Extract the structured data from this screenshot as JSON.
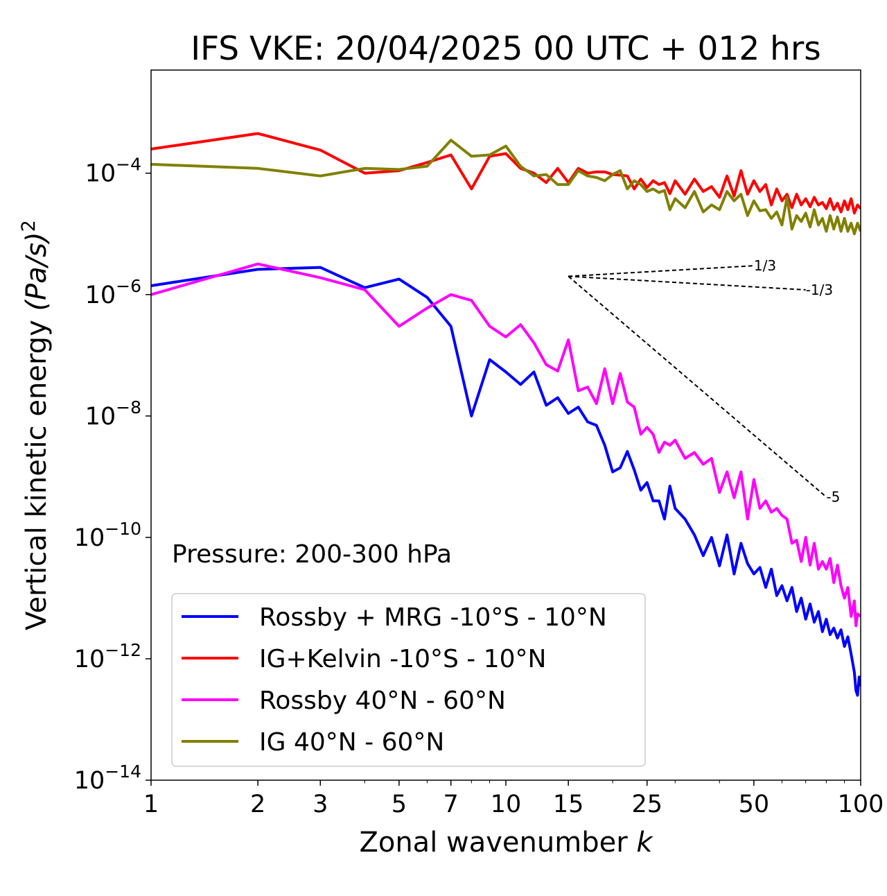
{
  "chart_data": {
    "type": "line",
    "title": "IFS VKE: 20/04/2025 00 UTC + 012 hrs",
    "xlabel": "Zonal wavenumber",
    "xlabel_var": "k",
    "ylabel": "Vertical kinetic energy",
    "ylabel_unit_base": "(Pa/s)",
    "ylabel_unit_exp": "2",
    "x_scale": "log",
    "y_scale": "log",
    "xlim": [
      1,
      100
    ],
    "ylim": [
      1e-14,
      0.005
    ],
    "x_ticks": [
      1,
      2,
      3,
      5,
      7,
      10,
      15,
      25,
      50,
      100
    ],
    "x_tick_labels": [
      "1",
      "2",
      "3",
      "5",
      "7",
      "10",
      "15",
      "25",
      "50",
      "100"
    ],
    "y_ticks": [
      {
        "value": 1e-14,
        "base": "10",
        "exp": "−14"
      },
      {
        "value": 1e-12,
        "base": "10",
        "exp": "−12"
      },
      {
        "value": 1e-10,
        "base": "10",
        "exp": "−10"
      },
      {
        "value": 1e-08,
        "base": "10",
        "exp": "−8"
      },
      {
        "value": 1e-06,
        "base": "10",
        "exp": "−6"
      },
      {
        "value": 0.0001,
        "base": "10",
        "exp": "−4"
      }
    ],
    "grid": false,
    "legend_position": "lower-left",
    "annotation": "Pressure: 200-300 hPa",
    "reference_slopes": [
      {
        "label": "1/3",
        "slope": 0.3333,
        "x0": 15,
        "y0": 2e-06,
        "x1": 50
      },
      {
        "label": "-1/3",
        "slope": -0.3333,
        "x0": 15,
        "y0": 2e-06,
        "x1": 70
      },
      {
        "label": "-5",
        "slope": -5,
        "x0": 15,
        "y0": 2e-06,
        "x1": 80
      }
    ],
    "series": [
      {
        "name": "Rossby + MRG -10°S - 10°N",
        "color": "#0000ff",
        "points": [
          [
            1,
            1.4e-06
          ],
          [
            2,
            2.6e-06
          ],
          [
            3,
            2.8e-06
          ],
          [
            4,
            1.3e-06
          ],
          [
            5,
            1.8e-06
          ],
          [
            6,
            9e-07
          ],
          [
            7,
            3e-07
          ],
          [
            8,
            1e-08
          ],
          [
            9,
            8.5e-08
          ],
          [
            10,
            5.3e-08
          ],
          [
            11,
            3.3e-08
          ],
          [
            12,
            5.3e-08
          ],
          [
            13,
            1.5e-08
          ],
          [
            14,
            2e-08
          ],
          [
            15,
            1.1e-08
          ],
          [
            16,
            1.4e-08
          ],
          [
            17,
            8e-09
          ],
          [
            18,
            7e-09
          ],
          [
            19,
            3.3e-09
          ],
          [
            20,
            1.2e-09
          ],
          [
            21,
            1.4e-09
          ],
          [
            22,
            2.6e-09
          ],
          [
            23,
            1.3e-09
          ],
          [
            24,
            6e-10
          ],
          [
            25,
            8e-10
          ],
          [
            26,
            4e-10
          ],
          [
            27,
            4e-10
          ],
          [
            28,
            2e-10
          ],
          [
            29,
            7e-10
          ],
          [
            30,
            3e-10
          ],
          [
            32,
            2e-10
          ],
          [
            34,
            1.1e-10
          ],
          [
            36,
            5e-11
          ],
          [
            38,
            1e-10
          ],
          [
            40,
            3.4e-11
          ],
          [
            42,
            1.1e-10
          ],
          [
            44,
            2.5e-11
          ],
          [
            46,
            8e-11
          ],
          [
            48,
            3.7e-11
          ],
          [
            50,
            2.5e-11
          ],
          [
            52,
            3.2e-11
          ],
          [
            54,
            1.5e-11
          ],
          [
            56,
            3e-11
          ],
          [
            58,
            1.1e-11
          ],
          [
            60,
            1.6e-11
          ],
          [
            62,
            9e-12
          ],
          [
            64,
            1.5e-11
          ],
          [
            66,
            6e-12
          ],
          [
            68,
            1e-11
          ],
          [
            70,
            4.5e-12
          ],
          [
            72,
            8e-12
          ],
          [
            74,
            4e-12
          ],
          [
            76,
            6e-12
          ],
          [
            78,
            2.8e-12
          ],
          [
            80,
            4.5e-12
          ],
          [
            82,
            2.5e-12
          ],
          [
            84,
            3.2e-12
          ],
          [
            86,
            2.2e-12
          ],
          [
            88,
            3e-12
          ],
          [
            90,
            1.6e-12
          ],
          [
            92,
            2.3e-12
          ],
          [
            94,
            1.2e-12
          ],
          [
            96,
            6e-13
          ],
          [
            97,
            3e-13
          ],
          [
            98,
            2.5e-13
          ],
          [
            99,
            5e-13
          ],
          [
            100,
            3.5e-13
          ]
        ]
      },
      {
        "name": "IG+Kelvin -10°S - 10°N",
        "color": "#ff0000",
        "points": [
          [
            1,
            0.00025
          ],
          [
            2,
            0.00045
          ],
          [
            3,
            0.00024
          ],
          [
            4,
            0.0001
          ],
          [
            5,
            0.00011
          ],
          [
            6,
            0.00015
          ],
          [
            7,
            0.0002
          ],
          [
            8,
            5.5e-05
          ],
          [
            9,
            0.00019
          ],
          [
            10,
            0.00021
          ],
          [
            11,
            0.00012
          ],
          [
            12,
            0.0001
          ],
          [
            13,
            7e-05
          ],
          [
            14,
            0.00012
          ],
          [
            15,
            7e-05
          ],
          [
            16,
            0.00012
          ],
          [
            17,
            0.0001
          ],
          [
            18,
            0.000105
          ],
          [
            19,
            0.000105
          ],
          [
            20,
            9.5e-05
          ],
          [
            21,
            9.3e-05
          ],
          [
            22,
            9e-05
          ],
          [
            23,
            5.5e-05
          ],
          [
            24,
            8e-05
          ],
          [
            25,
            5.8e-05
          ],
          [
            26,
            7.5e-05
          ],
          [
            27,
            6.5e-05
          ],
          [
            28,
            7e-05
          ],
          [
            29,
            4.6e-05
          ],
          [
            30,
            7.5e-05
          ],
          [
            32,
            4.5e-05
          ],
          [
            34,
            8e-05
          ],
          [
            36,
            5e-05
          ],
          [
            38,
            6e-05
          ],
          [
            40,
            4e-05
          ],
          [
            42,
            9e-05
          ],
          [
            44,
            4.2e-05
          ],
          [
            46,
            0.00011
          ],
          [
            48,
            4.5e-05
          ],
          [
            50,
            7.5e-05
          ],
          [
            52,
            5e-05
          ],
          [
            54,
            6.5e-05
          ],
          [
            56,
            3e-05
          ],
          [
            58,
            5.5e-05
          ],
          [
            60,
            3.5e-05
          ],
          [
            62,
            4.5e-05
          ],
          [
            64,
            2.7e-05
          ],
          [
            66,
            4.5e-05
          ],
          [
            68,
            3e-05
          ],
          [
            70,
            3.8e-05
          ],
          [
            72,
            2.8e-05
          ],
          [
            74,
            4e-05
          ],
          [
            76,
            3e-05
          ],
          [
            78,
            3.3e-05
          ],
          [
            80,
            2.6e-05
          ],
          [
            82,
            3.8e-05
          ],
          [
            84,
            2.5e-05
          ],
          [
            86,
            3.2e-05
          ],
          [
            88,
            2.3e-05
          ],
          [
            90,
            3.5e-05
          ],
          [
            92,
            2.5e-05
          ],
          [
            94,
            3.8e-05
          ],
          [
            96,
            2.2e-05
          ],
          [
            98,
            3e-05
          ],
          [
            100,
            2.6e-05
          ]
        ]
      },
      {
        "name": "Rossby 40°N - 60°N",
        "color": "#ff00ff",
        "points": [
          [
            1,
            1e-06
          ],
          [
            2,
            3.2e-06
          ],
          [
            3,
            1.9e-06
          ],
          [
            4,
            1.2e-06
          ],
          [
            5,
            3e-07
          ],
          [
            6,
            6e-07
          ],
          [
            7,
            1e-06
          ],
          [
            8,
            8e-07
          ],
          [
            9,
            3e-07
          ],
          [
            10,
            2e-07
          ],
          [
            11,
            3.2e-07
          ],
          [
            12,
            1.6e-07
          ],
          [
            13,
            7e-08
          ],
          [
            14,
            5.5e-08
          ],
          [
            15,
            1.8e-07
          ],
          [
            16,
            2.6e-08
          ],
          [
            17,
            3e-08
          ],
          [
            18,
            1.6e-08
          ],
          [
            19,
            6e-08
          ],
          [
            20,
            1.6e-08
          ],
          [
            21,
            5e-08
          ],
          [
            22,
            1.7e-08
          ],
          [
            23,
            1.4e-08
          ],
          [
            24,
            5e-09
          ],
          [
            25,
            6.5e-09
          ],
          [
            26,
            5e-09
          ],
          [
            27,
            2.5e-09
          ],
          [
            28,
            3.7e-09
          ],
          [
            29,
            3.3e-09
          ],
          [
            30,
            4e-09
          ],
          [
            32,
            2e-09
          ],
          [
            34,
            2.5e-09
          ],
          [
            36,
            1.6e-09
          ],
          [
            38,
            2e-09
          ],
          [
            40,
            5.5e-10
          ],
          [
            42,
            1.2e-09
          ],
          [
            44,
            4.5e-10
          ],
          [
            46,
            1.2e-09
          ],
          [
            48,
            2e-10
          ],
          [
            50,
            9e-10
          ],
          [
            52,
            3e-10
          ],
          [
            54,
            4e-10
          ],
          [
            56,
            2.6e-10
          ],
          [
            58,
            3e-10
          ],
          [
            60,
            2.3e-10
          ],
          [
            62,
            2e-10
          ],
          [
            64,
            8e-11
          ],
          [
            66,
            9e-11
          ],
          [
            68,
            4e-11
          ],
          [
            70,
            1e-10
          ],
          [
            72,
            3.5e-11
          ],
          [
            74,
            8e-11
          ],
          [
            76,
            3e-11
          ],
          [
            78,
            4e-11
          ],
          [
            80,
            3e-11
          ],
          [
            82,
            4.5e-11
          ],
          [
            84,
            1.8e-11
          ],
          [
            86,
            3.5e-11
          ],
          [
            88,
            1.6e-11
          ],
          [
            90,
            1e-11
          ],
          [
            92,
            1.5e-11
          ],
          [
            94,
            5e-12
          ],
          [
            96,
            9e-12
          ],
          [
            97,
            3.5e-12
          ],
          [
            98,
            5.5e-12
          ],
          [
            100,
            5e-12
          ]
        ]
      },
      {
        "name": "IG 40°N - 60°N",
        "color": "#808000",
        "points": [
          [
            1,
            0.00014
          ],
          [
            2,
            0.00012
          ],
          [
            3,
            9e-05
          ],
          [
            4,
            0.00012
          ],
          [
            5,
            0.000115
          ],
          [
            6,
            0.00013
          ],
          [
            7,
            0.00035
          ],
          [
            8,
            0.00019
          ],
          [
            9,
            0.0002
          ],
          [
            10,
            0.00028
          ],
          [
            11,
            0.00013
          ],
          [
            12,
            9e-05
          ],
          [
            13,
            9.5e-05
          ],
          [
            14,
            6.5e-05
          ],
          [
            15,
            6.5e-05
          ],
          [
            16,
            0.00011
          ],
          [
            17,
            9e-05
          ],
          [
            18,
            8.5e-05
          ],
          [
            19,
            7.5e-05
          ],
          [
            20,
            9.5e-05
          ],
          [
            21,
            0.00011
          ],
          [
            22,
            5.5e-05
          ],
          [
            23,
            7.5e-05
          ],
          [
            24,
            6.5e-05
          ],
          [
            25,
            5e-05
          ],
          [
            26,
            5.5e-05
          ],
          [
            27,
            4.8e-05
          ],
          [
            28,
            5.2e-05
          ],
          [
            29,
            2.5e-05
          ],
          [
            30,
            3.8e-05
          ],
          [
            32,
            2.7e-05
          ],
          [
            34,
            5e-05
          ],
          [
            36,
            2.3e-05
          ],
          [
            38,
            3e-05
          ],
          [
            40,
            2.5e-05
          ],
          [
            42,
            5e-05
          ],
          [
            44,
            3.5e-05
          ],
          [
            46,
            4.5e-05
          ],
          [
            48,
            2e-05
          ],
          [
            50,
            3.5e-05
          ],
          [
            52,
            2.4e-05
          ],
          [
            54,
            2.5e-05
          ],
          [
            56,
            1.8e-05
          ],
          [
            58,
            2.3e-05
          ],
          [
            60,
            1.4e-05
          ],
          [
            62,
            4e-05
          ],
          [
            64,
            1.2e-05
          ],
          [
            66,
            2e-05
          ],
          [
            68,
            1.6e-05
          ],
          [
            70,
            2.2e-05
          ],
          [
            72,
            1.3e-05
          ],
          [
            74,
            2.5e-05
          ],
          [
            76,
            1.4e-05
          ],
          [
            78,
            1.8e-05
          ],
          [
            80,
            1.1e-05
          ],
          [
            82,
            2e-05
          ],
          [
            84,
            1.2e-05
          ],
          [
            86,
            1.9e-05
          ],
          [
            88,
            1.1e-05
          ],
          [
            90,
            1.8e-05
          ],
          [
            92,
            1.1e-05
          ],
          [
            94,
            1.5e-05
          ],
          [
            96,
            1e-05
          ],
          [
            98,
            1.5e-05
          ],
          [
            100,
            1.1e-05
          ]
        ]
      }
    ]
  }
}
